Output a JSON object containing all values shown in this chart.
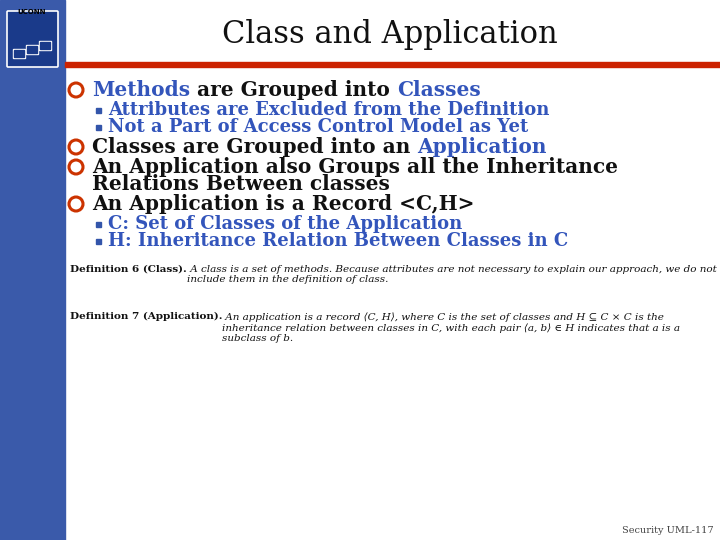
{
  "title": "Class and Application",
  "title_fontsize": 22,
  "title_color": "#111111",
  "background_color": "#ffffff",
  "left_bar_color": "#3a5aaa",
  "red_line_color": "#cc2200",
  "bullet_color": "#cc3300",
  "sub_bullet_color": "#3355aa",
  "blue_text_color": "#3355bb",
  "black_text_color": "#111111",
  "footer_color": "#444444",
  "bullet_font_size": 14.5,
  "sub_bullet_font_size": 13,
  "footer_font_size": 7.5,
  "slide_number": "Security UML-117",
  "bullet1_blue": "Methods",
  "bullet1_black": " are Grouped into ",
  "bullet1_blue2": "Classes",
  "sub1a": "Attributes are Excluded from the Definition",
  "sub1b": "Not a Part of Access Control Model as Yet",
  "bullet2_black": "Classes are Grouped into an ",
  "bullet2_blue": "Application",
  "bullet3_line1": "An Application also Groups all the Inheritance",
  "bullet3_line2": "Relations Between classes",
  "bullet4": "An Application is a Record <C,H>",
  "sub4a_blue": "C: Set of Classes of the Application",
  "sub4b_blue": "H: Inheritance Relation Between Classes in C",
  "def1_bold": "Definition 6 (Class).",
  "def1_italic": " A class is a set of methods. Because attributes are not necessary to explain our approach, we do not include them in the definition of class.",
  "def2_bold": "Definition 7 (Application).",
  "def2_italic": " An application is a record ⟨C, H⟩, where C is the set of classes and H ⊆ C × C is the inheritance relation between classes in C, with each pair ⟨a, b⟩ ∈ H indicates that a is a subclass of b."
}
